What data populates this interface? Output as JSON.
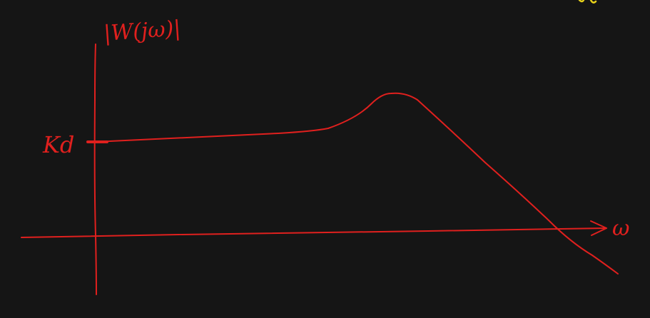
{
  "labels": {
    "y_axis": "|W(jω)|",
    "x_axis": "ω",
    "y_tick": "Kd"
  },
  "colors": {
    "background": "#151515",
    "ink_red": "#e0201e",
    "ink_yellow": "#e8d21a"
  }
}
